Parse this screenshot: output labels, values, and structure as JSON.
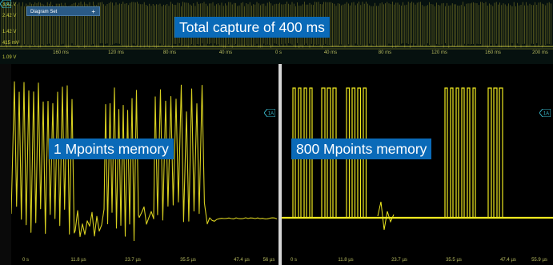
{
  "overview": {
    "tab_label": "Diagram Set",
    "tab_plus": "+",
    "levels": [
      "3.92 V",
      "2.42 V",
      "1.42 V",
      "415 mV",
      "1.09 V"
    ],
    "ticks": [
      "160 ms",
      "120 ms",
      "80 ms",
      "40 ms",
      "0 s",
      "40 ms",
      "80 ms",
      "120 ms",
      "160 ms",
      "200 ms"
    ],
    "callout": "Total capture of 400 ms",
    "channel_marker": "1A"
  },
  "left_pane": {
    "callout": "1 Mpoints memory",
    "ticks": [
      "0 s",
      "11.8 µs",
      "23.7 µs",
      "35.5 µs",
      "47.4 µs",
      "56 µs"
    ],
    "channel_marker": "1A"
  },
  "right_pane": {
    "callout": "800 Mpoints memory",
    "ticks": [
      "0 s",
      "11.8 µs",
      "23.7 µs",
      "35.5 µs",
      "47.4 µs",
      "55.9 µs"
    ],
    "channel_marker": "1A"
  },
  "colors": {
    "trace": "#d8d020",
    "trace_bright": "#f0ea20",
    "callout_bg": "#0a6ab8",
    "marker": "#39b6c9"
  }
}
